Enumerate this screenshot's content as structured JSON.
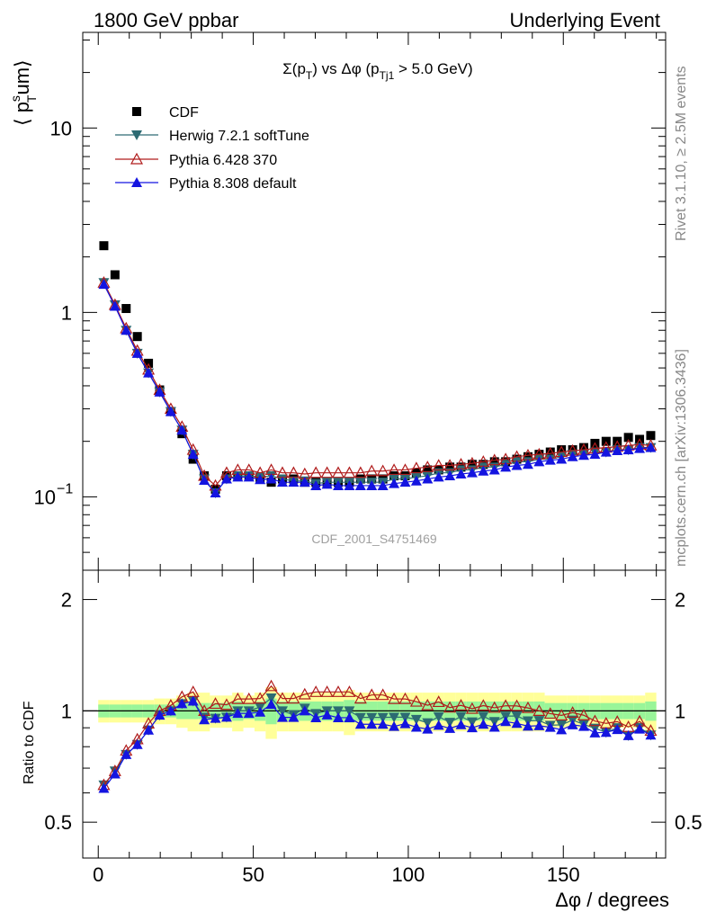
{
  "header": {
    "left": "1800 GeV ppbar",
    "right": "Underlying Event"
  },
  "side_text": {
    "rivet": "Rivet 3.1.10, ≥ 2.5M events",
    "mcplots": "mcplots.cern.ch [arXiv:1306.3436]"
  },
  "chart_data": {
    "type": "scatter",
    "title": "Σ(p_T) vs Δφ (p_Tj1 > 5.0 GeV)",
    "xlabel": "Δφ / degrees",
    "ylabel": "⟨ p_T^sum ⟩",
    "ratio_ylabel": "Ratio to CDF",
    "watermark": "CDF_2001_S4751469",
    "xlim": [
      -5,
      183
    ],
    "ylim": [
      0.04,
      33
    ],
    "yscale": "log",
    "ratio_ylim": [
      0.4,
      2.4
    ],
    "x_ticks": [
      "0",
      "50",
      "100",
      "150"
    ],
    "y_ticks": [
      "10^-1",
      "1",
      "10"
    ],
    "ratio_ticks": [
      "0.5",
      "1",
      "2"
    ],
    "legend_position": "top-left",
    "x": [
      1.8,
      5.4,
      9,
      12.6,
      16.2,
      19.8,
      23.4,
      27,
      30.6,
      34.2,
      37.8,
      41.4,
      45,
      48.6,
      52.2,
      55.8,
      59.4,
      63,
      66.6,
      70.2,
      73.8,
      77.4,
      81,
      84.6,
      88.2,
      91.8,
      95.4,
      99,
      102.6,
      106.2,
      109.8,
      113.4,
      117,
      120.6,
      124.2,
      127.8,
      131.4,
      135,
      138.6,
      142.2,
      145.8,
      149.4,
      153,
      156.6,
      160.2,
      163.8,
      167.4,
      171,
      174.6,
      178.2
    ],
    "series": [
      {
        "name": "CDF",
        "color": "#000000",
        "marker": "square",
        "values": [
          2.3,
          1.6,
          1.05,
          0.74,
          0.53,
          0.38,
          0.29,
          0.22,
          0.16,
          0.13,
          0.11,
          0.13,
          0.13,
          0.13,
          0.125,
          0.12,
          0.125,
          0.125,
          0.12,
          0.12,
          0.12,
          0.12,
          0.12,
          0.125,
          0.125,
          0.125,
          0.13,
          0.13,
          0.135,
          0.14,
          0.14,
          0.145,
          0.145,
          0.15,
          0.15,
          0.155,
          0.155,
          0.16,
          0.165,
          0.17,
          0.175,
          0.18,
          0.18,
          0.185,
          0.195,
          0.2,
          0.2,
          0.21,
          0.205,
          0.215
        ]
      },
      {
        "name": "Herwig 7.2.1 softTune",
        "color": "#2d6b73",
        "marker": "triangle-down",
        "values": [
          1.45,
          1.1,
          0.8,
          0.6,
          0.47,
          0.37,
          0.29,
          0.23,
          0.17,
          0.125,
          0.105,
          0.125,
          0.13,
          0.13,
          0.128,
          0.13,
          0.125,
          0.122,
          0.122,
          0.118,
          0.12,
          0.12,
          0.12,
          0.12,
          0.12,
          0.12,
          0.125,
          0.125,
          0.128,
          0.13,
          0.135,
          0.135,
          0.14,
          0.14,
          0.145,
          0.145,
          0.15,
          0.155,
          0.155,
          0.16,
          0.16,
          0.165,
          0.17,
          0.17,
          0.175,
          0.175,
          0.18,
          0.18,
          0.185,
          0.185
        ]
      },
      {
        "name": "Pythia 6.428 370",
        "color": "#b01c1c",
        "marker": "triangle-up-open",
        "values": [
          1.45,
          1.1,
          0.82,
          0.62,
          0.49,
          0.38,
          0.3,
          0.24,
          0.18,
          0.13,
          0.115,
          0.135,
          0.14,
          0.14,
          0.135,
          0.14,
          0.135,
          0.135,
          0.133,
          0.135,
          0.135,
          0.135,
          0.135,
          0.135,
          0.138,
          0.138,
          0.14,
          0.14,
          0.143,
          0.145,
          0.148,
          0.148,
          0.15,
          0.152,
          0.155,
          0.158,
          0.16,
          0.165,
          0.168,
          0.17,
          0.172,
          0.175,
          0.178,
          0.18,
          0.183,
          0.185,
          0.187,
          0.19,
          0.192,
          0.19
        ]
      },
      {
        "name": "Pythia 8.308 default",
        "color": "#1414e0",
        "marker": "triangle-up",
        "values": [
          1.42,
          1.08,
          0.8,
          0.6,
          0.47,
          0.37,
          0.29,
          0.23,
          0.17,
          0.123,
          0.105,
          0.125,
          0.128,
          0.128,
          0.124,
          0.125,
          0.12,
          0.12,
          0.12,
          0.115,
          0.117,
          0.115,
          0.115,
          0.115,
          0.115,
          0.115,
          0.118,
          0.12,
          0.122,
          0.125,
          0.128,
          0.13,
          0.133,
          0.135,
          0.138,
          0.14,
          0.145,
          0.148,
          0.15,
          0.155,
          0.158,
          0.16,
          0.165,
          0.168,
          0.17,
          0.175,
          0.178,
          0.18,
          0.183,
          0.185
        ]
      }
    ],
    "ratio_band": {
      "inner_color": "#99f599",
      "outer_color": "#ffff99",
      "inner_half_width": [
        0.04,
        0.04,
        0.04,
        0.04,
        0.04,
        0.04,
        0.04,
        0.05,
        0.05,
        0.05,
        0.05,
        0.05,
        0.06,
        0.05,
        0.06,
        0.08,
        0.06,
        0.06,
        0.06,
        0.06,
        0.06,
        0.06,
        0.07,
        0.06,
        0.06,
        0.06,
        0.06,
        0.06,
        0.06,
        0.06,
        0.06,
        0.06,
        0.06,
        0.06,
        0.06,
        0.06,
        0.06,
        0.06,
        0.06,
        0.06,
        0.05,
        0.05,
        0.05,
        0.05,
        0.05,
        0.05,
        0.05,
        0.05,
        0.05,
        0.06
      ],
      "outer_half_width": [
        0.07,
        0.07,
        0.07,
        0.07,
        0.07,
        0.08,
        0.08,
        0.1,
        0.12,
        0.12,
        0.1,
        0.1,
        0.12,
        0.1,
        0.12,
        0.16,
        0.12,
        0.12,
        0.12,
        0.12,
        0.12,
        0.12,
        0.14,
        0.12,
        0.12,
        0.12,
        0.12,
        0.12,
        0.12,
        0.12,
        0.12,
        0.12,
        0.12,
        0.12,
        0.12,
        0.12,
        0.12,
        0.12,
        0.12,
        0.12,
        0.1,
        0.1,
        0.1,
        0.1,
        0.1,
        0.1,
        0.1,
        0.1,
        0.1,
        0.12
      ]
    }
  }
}
